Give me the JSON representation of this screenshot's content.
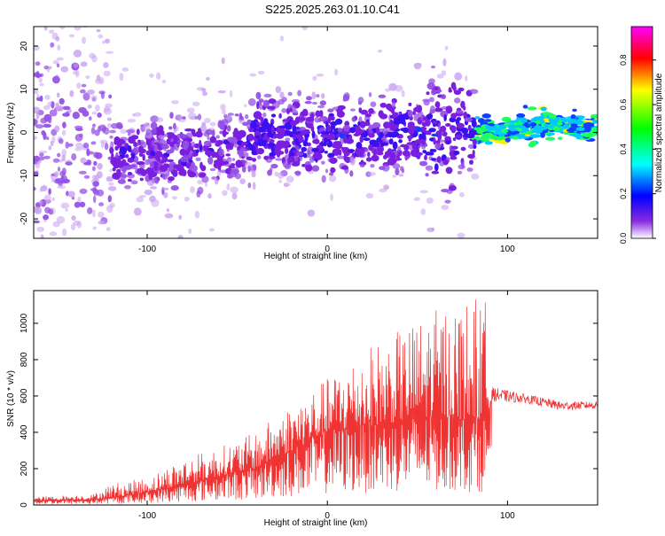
{
  "title": "S225.2025.263.01.10.C41",
  "chart_data": [
    {
      "type": "heatmap",
      "name": "spectrogram",
      "xlabel": "Height of straight line (km)",
      "ylabel": "Frequency (Hz)",
      "xlim": [
        -163,
        150
      ],
      "ylim": [
        -24.5,
        24.5
      ],
      "xticks": [
        -100,
        0,
        100
      ],
      "yticks": [
        -20,
        -10,
        0,
        10,
        20
      ],
      "colorbar": {
        "label": "Normalized spectral amplitude",
        "range": [
          0.0,
          0.95
        ],
        "ticks": [
          "0.0",
          "0.2",
          "0.4",
          "0.6",
          "0.8"
        ]
      },
      "ridge": [
        {
          "x": -160,
          "f": 2
        },
        {
          "x": -130,
          "f": -5
        },
        {
          "x": -110,
          "f": -6
        },
        {
          "x": -90,
          "f": -5
        },
        {
          "x": -70,
          "f": -5
        },
        {
          "x": -50,
          "f": -3
        },
        {
          "x": -35,
          "f": 0
        },
        {
          "x": -20,
          "f": -1
        },
        {
          "x": 0,
          "f": -1
        },
        {
          "x": 20,
          "f": -1
        },
        {
          "x": 40,
          "f": 0
        },
        {
          "x": 60,
          "f": -1
        },
        {
          "x": 80,
          "f": 0
        },
        {
          "x": 100,
          "f": 0
        },
        {
          "x": 115,
          "f": 2
        },
        {
          "x": 130,
          "f": 2
        },
        {
          "x": 150,
          "f": 1
        }
      ]
    },
    {
      "type": "line",
      "name": "snr",
      "xlabel": "Height of straight line (km)",
      "ylabel": "SNR (10 * v/v)",
      "xlim": [
        -163,
        150
      ],
      "ylim": [
        0,
        1180
      ],
      "xticks": [
        -100,
        0,
        100
      ],
      "yticks": [
        0,
        200,
        400,
        600,
        800,
        1000
      ],
      "color": "#ee3333",
      "envelope": [
        {
          "x": -163,
          "base": 25,
          "peak": 45
        },
        {
          "x": -130,
          "base": 30,
          "peak": 60
        },
        {
          "x": -120,
          "base": 40,
          "peak": 120
        },
        {
          "x": -100,
          "base": 70,
          "peak": 150
        },
        {
          "x": -80,
          "base": 110,
          "peak": 260
        },
        {
          "x": -60,
          "base": 160,
          "peak": 320
        },
        {
          "x": -40,
          "base": 200,
          "peak": 400
        },
        {
          "x": -20,
          "base": 300,
          "peak": 560
        },
        {
          "x": 0,
          "base": 400,
          "peak": 700
        },
        {
          "x": 20,
          "base": 430,
          "peak": 860
        },
        {
          "x": 40,
          "base": 460,
          "peak": 960
        },
        {
          "x": 60,
          "base": 480,
          "peak": 1080
        },
        {
          "x": 80,
          "base": 470,
          "peak": 1150
        },
        {
          "x": 88,
          "base": 470,
          "peak": 1130
        },
        {
          "x": 91,
          "base": 570,
          "peak": 650
        },
        {
          "x": 110,
          "base": 560,
          "peak": 610
        },
        {
          "x": 130,
          "base": 520,
          "peak": 570
        },
        {
          "x": 150,
          "base": 530,
          "peak": 570
        }
      ]
    }
  ]
}
